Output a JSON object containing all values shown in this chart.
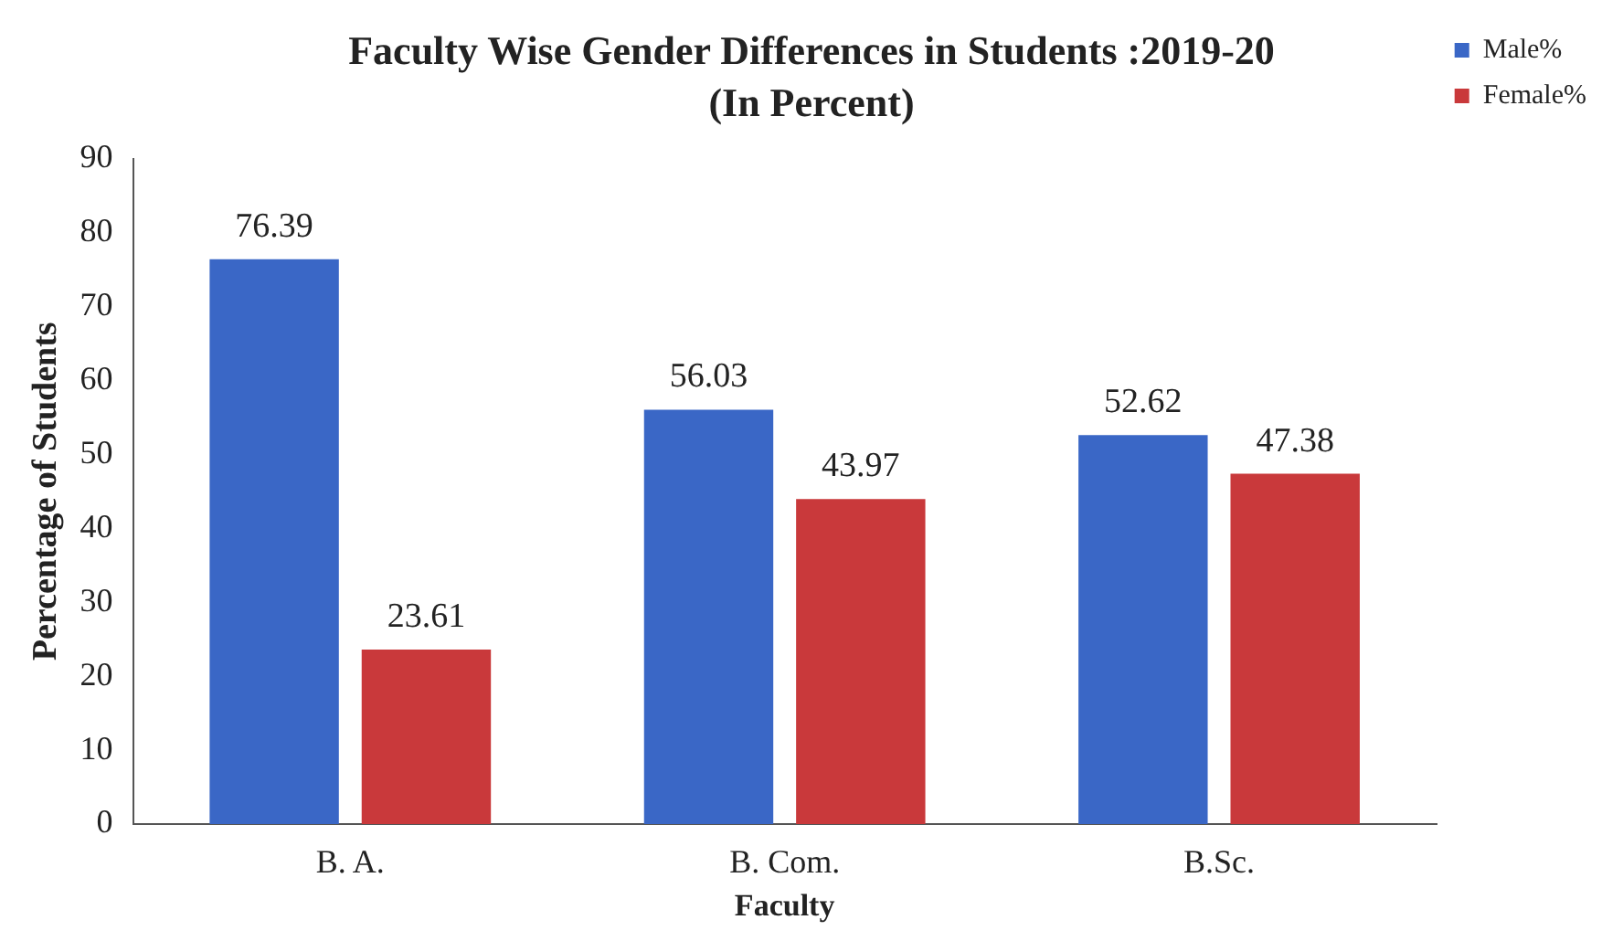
{
  "chart_data": {
    "type": "bar",
    "title": "Faculty Wise Gender Differences in Students :2019-20",
    "subtitle": "(In Percent)",
    "xlabel": "Faculty",
    "ylabel": "Percentage of Students",
    "categories": [
      "B. A.",
      "B. Com.",
      "B.Sc."
    ],
    "series": [
      {
        "name": "Male%",
        "color": "#3a67c6",
        "values": [
          76.39,
          56.03,
          52.62
        ]
      },
      {
        "name": "Female%",
        "color": "#c9393b",
        "values": [
          23.61,
          43.97,
          47.38
        ]
      }
    ],
    "ylim": [
      0,
      90
    ],
    "yticks": [
      0,
      10,
      20,
      30,
      40,
      50,
      60,
      70,
      80,
      90
    ],
    "grid": false,
    "legend": "top right",
    "data_labels": true
  }
}
